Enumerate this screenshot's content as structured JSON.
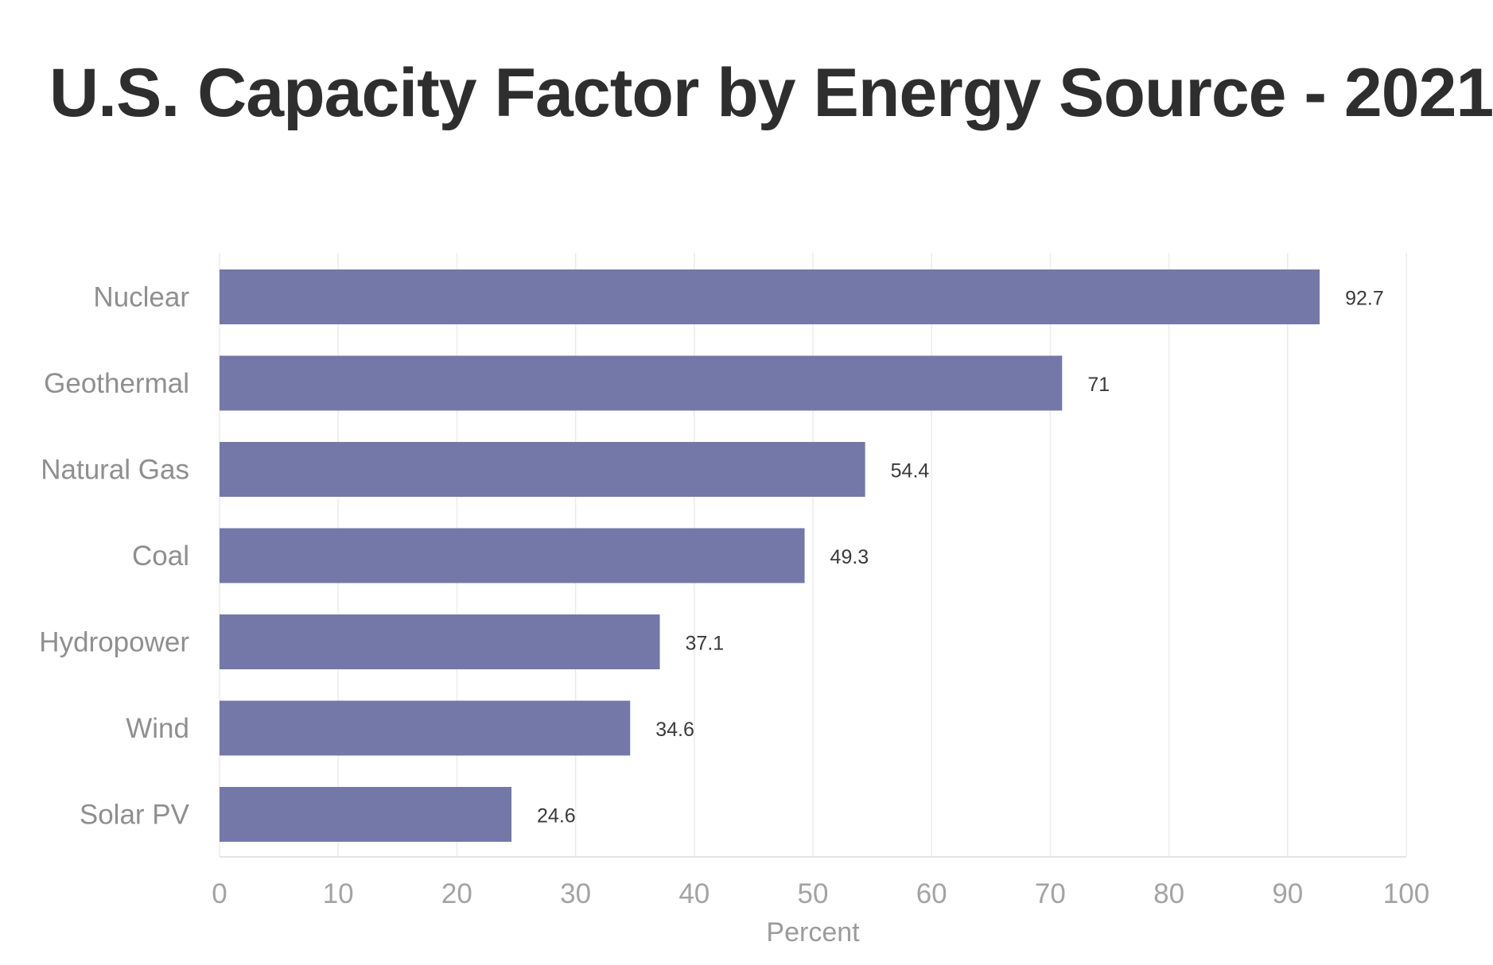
{
  "chart_data": {
    "type": "bar",
    "orientation": "horizontal",
    "title": "U.S. Capacity Factor by Energy Source - 2021",
    "categories": [
      "Nuclear",
      "Geothermal",
      "Natural Gas",
      "Coal",
      "Hydropower",
      "Wind",
      "Solar PV"
    ],
    "values": [
      92.7,
      71,
      54.4,
      49.3,
      37.1,
      34.6,
      24.6
    ],
    "value_labels": [
      "92.7",
      "71",
      "54.4",
      "49.3",
      "37.1",
      "34.6",
      "24.6"
    ],
    "xlabel": "Percent",
    "ylabel": "",
    "xlim": [
      0,
      100
    ],
    "xticks": [
      0,
      10,
      20,
      30,
      40,
      50,
      60,
      70,
      80,
      90,
      100
    ],
    "grid": true,
    "legend": "none",
    "bar_color": "#7478a8"
  }
}
